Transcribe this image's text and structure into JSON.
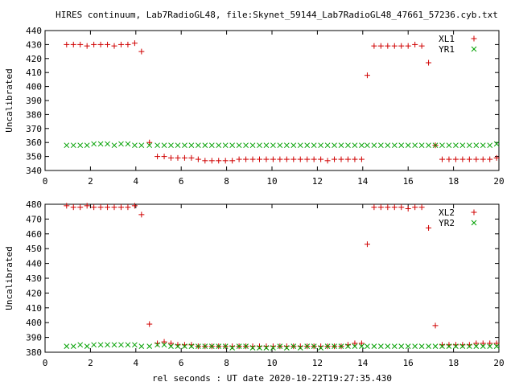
{
  "title": "HIRES continuum, Lab7RadioGL48, file:Skynet_59144_Lab7RadioGL48_47661_57236.cyb.txt",
  "xlabel": "rel seconds : UT date 2020-10-22T19:27:35.430",
  "colors": {
    "plus_series": "#d00000",
    "cross_series": "#00a000",
    "frame": "#000000"
  },
  "chart_data": [
    {
      "type": "scatter",
      "ylabel": "Uncalibrated",
      "xlim": [
        0,
        20
      ],
      "ylim": [
        340,
        440
      ],
      "xticks": [
        0,
        2,
        4,
        6,
        8,
        10,
        12,
        14,
        16,
        18,
        20
      ],
      "yticks": [
        340,
        350,
        360,
        370,
        380,
        390,
        400,
        410,
        420,
        430,
        440
      ],
      "grid": false,
      "legend_position": "top-right",
      "series": [
        {
          "name": "XL1",
          "marker": "plus",
          "color": "#d00000",
          "points": [
            [
              0.95,
              430
            ],
            [
              1.25,
              430
            ],
            [
              1.55,
              430
            ],
            [
              1.85,
              429
            ],
            [
              2.15,
              430
            ],
            [
              2.45,
              430
            ],
            [
              2.75,
              430
            ],
            [
              3.05,
              429
            ],
            [
              3.35,
              430
            ],
            [
              3.65,
              430
            ],
            [
              3.95,
              431
            ],
            [
              4.25,
              425
            ],
            [
              4.6,
              360
            ],
            [
              4.95,
              350
            ],
            [
              5.25,
              350
            ],
            [
              5.55,
              349
            ],
            [
              5.85,
              349
            ],
            [
              6.15,
              349
            ],
            [
              6.45,
              349
            ],
            [
              6.75,
              348
            ],
            [
              7.05,
              347
            ],
            [
              7.35,
              347
            ],
            [
              7.65,
              347
            ],
            [
              7.95,
              347
            ],
            [
              8.25,
              347
            ],
            [
              8.55,
              348
            ],
            [
              8.85,
              348
            ],
            [
              9.15,
              348
            ],
            [
              9.45,
              348
            ],
            [
              9.75,
              348
            ],
            [
              10.05,
              348
            ],
            [
              10.35,
              348
            ],
            [
              10.65,
              348
            ],
            [
              10.95,
              348
            ],
            [
              11.25,
              348
            ],
            [
              11.55,
              348
            ],
            [
              11.85,
              348
            ],
            [
              12.15,
              348
            ],
            [
              12.45,
              347
            ],
            [
              12.75,
              348
            ],
            [
              13.05,
              348
            ],
            [
              13.35,
              348
            ],
            [
              13.65,
              348
            ],
            [
              13.95,
              348
            ],
            [
              14.2,
              408
            ],
            [
              14.5,
              429
            ],
            [
              14.8,
              429
            ],
            [
              15.1,
              429
            ],
            [
              15.4,
              429
            ],
            [
              15.7,
              429
            ],
            [
              16.0,
              429
            ],
            [
              16.3,
              430
            ],
            [
              16.6,
              429
            ],
            [
              16.9,
              417
            ],
            [
              17.2,
              358
            ],
            [
              17.5,
              348
            ],
            [
              17.8,
              348
            ],
            [
              18.1,
              348
            ],
            [
              18.4,
              348
            ],
            [
              18.7,
              348
            ],
            [
              19.0,
              348
            ],
            [
              19.3,
              348
            ],
            [
              19.6,
              348
            ],
            [
              19.9,
              349
            ]
          ]
        },
        {
          "name": "YR1",
          "marker": "cross",
          "color": "#00a000",
          "points": [
            [
              0.95,
              358
            ],
            [
              1.25,
              358
            ],
            [
              1.55,
              358
            ],
            [
              1.85,
              358
            ],
            [
              2.15,
              359
            ],
            [
              2.45,
              359
            ],
            [
              2.75,
              359
            ],
            [
              3.05,
              358
            ],
            [
              3.35,
              359
            ],
            [
              3.65,
              359
            ],
            [
              3.95,
              358
            ],
            [
              4.25,
              358
            ],
            [
              4.6,
              358
            ],
            [
              4.95,
              358
            ],
            [
              5.25,
              358
            ],
            [
              5.55,
              358
            ],
            [
              5.85,
              358
            ],
            [
              6.15,
              358
            ],
            [
              6.45,
              358
            ],
            [
              6.75,
              358
            ],
            [
              7.05,
              358
            ],
            [
              7.35,
              358
            ],
            [
              7.65,
              358
            ],
            [
              7.95,
              358
            ],
            [
              8.25,
              358
            ],
            [
              8.55,
              358
            ],
            [
              8.85,
              358
            ],
            [
              9.15,
              358
            ],
            [
              9.45,
              358
            ],
            [
              9.75,
              358
            ],
            [
              10.05,
              358
            ],
            [
              10.35,
              358
            ],
            [
              10.65,
              358
            ],
            [
              10.95,
              358
            ],
            [
              11.25,
              358
            ],
            [
              11.55,
              358
            ],
            [
              11.85,
              358
            ],
            [
              12.15,
              358
            ],
            [
              12.45,
              358
            ],
            [
              12.75,
              358
            ],
            [
              13.05,
              358
            ],
            [
              13.35,
              358
            ],
            [
              13.65,
              358
            ],
            [
              13.95,
              358
            ],
            [
              14.2,
              358
            ],
            [
              14.5,
              358
            ],
            [
              14.8,
              358
            ],
            [
              15.1,
              358
            ],
            [
              15.4,
              358
            ],
            [
              15.7,
              358
            ],
            [
              16.0,
              358
            ],
            [
              16.3,
              358
            ],
            [
              16.6,
              358
            ],
            [
              16.9,
              358
            ],
            [
              17.2,
              358
            ],
            [
              17.5,
              358
            ],
            [
              17.8,
              358
            ],
            [
              18.1,
              358
            ],
            [
              18.4,
              358
            ],
            [
              18.7,
              358
            ],
            [
              19.0,
              358
            ],
            [
              19.3,
              358
            ],
            [
              19.6,
              358
            ],
            [
              19.9,
              359
            ]
          ]
        }
      ]
    },
    {
      "type": "scatter",
      "ylabel": "Uncalibrated",
      "xlim": [
        0,
        20
      ],
      "ylim": [
        380,
        480
      ],
      "xticks": [
        0,
        2,
        4,
        6,
        8,
        10,
        12,
        14,
        16,
        18,
        20
      ],
      "yticks": [
        380,
        390,
        400,
        410,
        420,
        430,
        440,
        450,
        460,
        470,
        480
      ],
      "grid": false,
      "legend_position": "top-right",
      "series": [
        {
          "name": "XL2",
          "marker": "plus",
          "color": "#d00000",
          "points": [
            [
              0.95,
              479
            ],
            [
              1.25,
              478
            ],
            [
              1.55,
              478
            ],
            [
              1.85,
              479
            ],
            [
              2.15,
              478
            ],
            [
              2.45,
              478
            ],
            [
              2.75,
              478
            ],
            [
              3.05,
              478
            ],
            [
              3.35,
              478
            ],
            [
              3.65,
              478
            ],
            [
              3.95,
              479
            ],
            [
              4.25,
              473
            ],
            [
              4.6,
              399
            ],
            [
              4.95,
              386
            ],
            [
              5.25,
              387
            ],
            [
              5.55,
              386
            ],
            [
              5.85,
              385
            ],
            [
              6.15,
              385
            ],
            [
              6.45,
              385
            ],
            [
              6.75,
              384
            ],
            [
              7.05,
              384
            ],
            [
              7.35,
              384
            ],
            [
              7.65,
              384
            ],
            [
              7.95,
              384
            ],
            [
              8.25,
              384
            ],
            [
              8.55,
              384
            ],
            [
              8.85,
              384
            ],
            [
              9.15,
              384
            ],
            [
              9.45,
              384
            ],
            [
              9.75,
              384
            ],
            [
              10.05,
              384
            ],
            [
              10.35,
              384
            ],
            [
              10.65,
              384
            ],
            [
              10.95,
              384
            ],
            [
              11.25,
              384
            ],
            [
              11.55,
              384
            ],
            [
              11.85,
              384
            ],
            [
              12.15,
              384
            ],
            [
              12.45,
              384
            ],
            [
              12.75,
              384
            ],
            [
              13.05,
              384
            ],
            [
              13.35,
              385
            ],
            [
              13.65,
              386
            ],
            [
              13.95,
              386
            ],
            [
              14.2,
              453
            ],
            [
              14.5,
              478
            ],
            [
              14.8,
              478
            ],
            [
              15.1,
              478
            ],
            [
              15.4,
              478
            ],
            [
              15.7,
              478
            ],
            [
              16.0,
              477
            ],
            [
              16.3,
              478
            ],
            [
              16.6,
              478
            ],
            [
              16.9,
              464
            ],
            [
              17.2,
              398
            ],
            [
              17.5,
              385
            ],
            [
              17.8,
              385
            ],
            [
              18.1,
              385
            ],
            [
              18.4,
              385
            ],
            [
              18.7,
              385
            ],
            [
              19.0,
              386
            ],
            [
              19.3,
              386
            ],
            [
              19.6,
              386
            ],
            [
              19.9,
              386
            ]
          ]
        },
        {
          "name": "YR2",
          "marker": "cross",
          "color": "#00a000",
          "points": [
            [
              0.95,
              384
            ],
            [
              1.25,
              384
            ],
            [
              1.55,
              385
            ],
            [
              1.85,
              384
            ],
            [
              2.15,
              385
            ],
            [
              2.45,
              385
            ],
            [
              2.75,
              385
            ],
            [
              3.05,
              385
            ],
            [
              3.35,
              385
            ],
            [
              3.65,
              385
            ],
            [
              3.95,
              385
            ],
            [
              4.25,
              384
            ],
            [
              4.6,
              384
            ],
            [
              4.95,
              385
            ],
            [
              5.25,
              385
            ],
            [
              5.55,
              384
            ],
            [
              5.85,
              384
            ],
            [
              6.15,
              384
            ],
            [
              6.45,
              384
            ],
            [
              6.75,
              384
            ],
            [
              7.05,
              384
            ],
            [
              7.35,
              384
            ],
            [
              7.65,
              384
            ],
            [
              7.95,
              384
            ],
            [
              8.25,
              383
            ],
            [
              8.55,
              384
            ],
            [
              8.85,
              384
            ],
            [
              9.15,
              383
            ],
            [
              9.45,
              383
            ],
            [
              9.75,
              383
            ],
            [
              10.05,
              383
            ],
            [
              10.35,
              384
            ],
            [
              10.65,
              383
            ],
            [
              10.95,
              384
            ],
            [
              11.25,
              383
            ],
            [
              11.55,
              384
            ],
            [
              11.85,
              384
            ],
            [
              12.15,
              383
            ],
            [
              12.45,
              384
            ],
            [
              12.75,
              384
            ],
            [
              13.05,
              384
            ],
            [
              13.35,
              384
            ],
            [
              13.65,
              384
            ],
            [
              13.95,
              384
            ],
            [
              14.2,
              384
            ],
            [
              14.5,
              384
            ],
            [
              14.8,
              384
            ],
            [
              15.1,
              384
            ],
            [
              15.4,
              384
            ],
            [
              15.7,
              384
            ],
            [
              16.0,
              384
            ],
            [
              16.3,
              384
            ],
            [
              16.6,
              384
            ],
            [
              16.9,
              384
            ],
            [
              17.2,
              384
            ],
            [
              17.5,
              384
            ],
            [
              17.8,
              384
            ],
            [
              18.1,
              384
            ],
            [
              18.4,
              384
            ],
            [
              18.7,
              384
            ],
            [
              19.0,
              384
            ],
            [
              19.3,
              384
            ],
            [
              19.6,
              384
            ],
            [
              19.9,
              384
            ]
          ]
        }
      ]
    }
  ]
}
